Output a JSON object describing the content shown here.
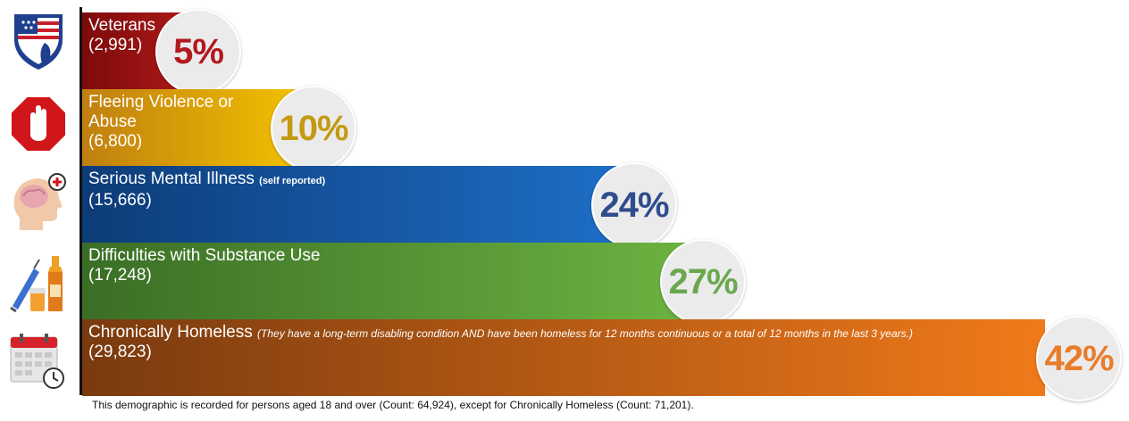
{
  "chart_data": {
    "type": "bar",
    "orientation": "horizontal",
    "categories": [
      "Veterans",
      "Fleeing Violence or Abuse",
      "Serious Mental Illness",
      "Difficulties with Substance Use",
      "Chronically Homeless"
    ],
    "values": [
      5,
      10,
      24,
      27,
      42
    ],
    "value_labels": [
      "5%",
      "10%",
      "24%",
      "27%",
      "42%"
    ],
    "counts": [
      "(2,991)",
      "(6,800)",
      "(15,666)",
      "(17,248)",
      "(29,823)"
    ],
    "xlim": [
      0,
      42
    ],
    "bars": [
      {
        "label": "Veterans",
        "note": "",
        "count": "(2,991)",
        "value": 5,
        "value_label": "5%",
        "color_start": "#7d0b0b",
        "color_end": "#b01a1a",
        "value_color": "#b2191e",
        "icon": "veteran-shield-icon"
      },
      {
        "label": "Fleeing Violence or Abuse",
        "note": "",
        "count": "(6,800)",
        "value": 10,
        "value_label": "10%",
        "color_start": "#c07f10",
        "color_end": "#f5c400",
        "value_color": "#c49a12",
        "icon": "stop-hand-icon"
      },
      {
        "label": "Serious Mental Illness",
        "note": "(self reported)",
        "count": "(15,666)",
        "value": 24,
        "value_label": "24%",
        "color_start": "#0d3c78",
        "color_end": "#1e6fc8",
        "value_color": "#2e4d8c",
        "icon": "brain-head-icon"
      },
      {
        "label": "Difficulties with Substance Use",
        "note": "",
        "count": "(17,248)",
        "value": 27,
        "value_label": "27%",
        "color_start": "#3a6e26",
        "color_end": "#6db441",
        "value_color": "#6aa84f",
        "icon": "syringe-bottle-icon"
      },
      {
        "label": "Chronically Homeless",
        "note": "(They have a long-term disabling condition AND have been homeless for 12 months continuous or a total of 12 months in the last 3 years.)",
        "count": "(29,823)",
        "value": 42,
        "value_label": "42%",
        "color_start": "#7a3a0f",
        "color_end": "#f07a1a",
        "value_color": "#e87c2a",
        "icon": "calendar-clock-icon"
      }
    ]
  },
  "footnote": "This demographic is recorded for persons aged 18 and over (Count: 64,924), except for Chronically Homeless (Count: 71,201)."
}
